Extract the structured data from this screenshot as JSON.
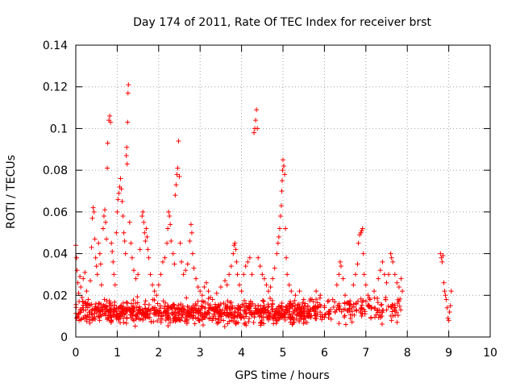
{
  "chart_data": {
    "type": "scatter",
    "title": "Day 174 of 2011, Rate Of TEC Index for receiver brst",
    "xlabel": "GPS time / hours",
    "ylabel": "ROTI / TECUs",
    "xlim": [
      0,
      10
    ],
    "ylim": [
      0,
      0.14
    ],
    "xticks": [
      "0",
      "1",
      "2",
      "3",
      "4",
      "5",
      "6",
      "7",
      "8",
      "9",
      "10"
    ],
    "yticks": [
      "0",
      "0.02",
      "0.04",
      "0.06",
      "0.08",
      "0.1",
      "0.12",
      "0.14"
    ],
    "grid": true,
    "marker": "+",
    "color": "#ff0000",
    "series": [
      {
        "name": "ROTI",
        "points": [
          [
            0.0,
            0.044
          ],
          [
            0.02,
            0.038
          ],
          [
            0.03,
            0.032
          ],
          [
            0.05,
            0.026
          ],
          [
            0.07,
            0.021
          ],
          [
            0.08,
            0.017
          ],
          [
            0.1,
            0.029
          ],
          [
            0.12,
            0.024
          ],
          [
            0.15,
            0.019
          ],
          [
            0.18,
            0.028
          ],
          [
            0.22,
            0.031
          ],
          [
            0.26,
            0.022
          ],
          [
            0.3,
            0.018
          ],
          [
            0.35,
            0.027
          ],
          [
            0.38,
            0.043
          ],
          [
            0.4,
            0.057
          ],
          [
            0.42,
            0.062
          ],
          [
            0.44,
            0.06
          ],
          [
            0.46,
            0.047
          ],
          [
            0.48,
            0.038
          ],
          [
            0.5,
            0.034
          ],
          [
            0.52,
            0.03
          ],
          [
            0.55,
            0.045
          ],
          [
            0.58,
            0.04
          ],
          [
            0.6,
            0.035
          ],
          [
            0.62,
            0.025
          ],
          [
            0.66,
            0.052
          ],
          [
            0.68,
            0.058
          ],
          [
            0.7,
            0.061
          ],
          [
            0.72,
            0.055
          ],
          [
            0.74,
            0.047
          ],
          [
            0.76,
            0.081
          ],
          [
            0.77,
            0.093
          ],
          [
            0.8,
            0.104
          ],
          [
            0.82,
            0.106
          ],
          [
            0.84,
            0.103
          ],
          [
            0.86,
            0.045
          ],
          [
            0.88,
            0.041
          ],
          [
            0.9,
            0.036
          ],
          [
            0.92,
            0.03
          ],
          [
            0.95,
            0.025
          ],
          [
            0.98,
            0.05
          ],
          [
            1.0,
            0.06
          ],
          [
            1.02,
            0.066
          ],
          [
            1.04,
            0.069
          ],
          [
            1.06,
            0.072
          ],
          [
            1.08,
            0.076
          ],
          [
            1.1,
            0.071
          ],
          [
            1.12,
            0.065
          ],
          [
            1.14,
            0.058
          ],
          [
            1.16,
            0.05
          ],
          [
            1.18,
            0.046
          ],
          [
            1.2,
            0.04
          ],
          [
            1.22,
            0.087
          ],
          [
            1.23,
            0.091
          ],
          [
            1.24,
            0.083
          ],
          [
            1.25,
            0.103
          ],
          [
            1.26,
            0.117
          ],
          [
            1.27,
            0.121
          ],
          [
            1.3,
            0.055
          ],
          [
            1.33,
            0.045
          ],
          [
            1.36,
            0.038
          ],
          [
            1.4,
            0.032
          ],
          [
            1.45,
            0.028
          ],
          [
            1.5,
            0.03
          ],
          [
            1.55,
            0.042
          ],
          [
            1.6,
            0.058
          ],
          [
            1.62,
            0.06
          ],
          [
            1.64,
            0.055
          ],
          [
            1.66,
            0.05
          ],
          [
            1.68,
            0.046
          ],
          [
            1.7,
            0.052
          ],
          [
            1.72,
            0.048
          ],
          [
            1.74,
            0.042
          ],
          [
            1.76,
            0.038
          ],
          [
            1.8,
            0.03
          ],
          [
            1.85,
            0.025
          ],
          [
            1.9,
            0.022
          ],
          [
            1.95,
            0.02
          ],
          [
            2.0,
            0.025
          ],
          [
            2.05,
            0.03
          ],
          [
            2.1,
            0.036
          ],
          [
            2.15,
            0.038
          ],
          [
            2.2,
            0.045
          ],
          [
            2.22,
            0.052
          ],
          [
            2.24,
            0.06
          ],
          [
            2.26,
            0.058
          ],
          [
            2.28,
            0.054
          ],
          [
            2.3,
            0.046
          ],
          [
            2.35,
            0.04
          ],
          [
            2.38,
            0.035
          ],
          [
            2.4,
            0.068
          ],
          [
            2.42,
            0.073
          ],
          [
            2.44,
            0.078
          ],
          [
            2.46,
            0.081
          ],
          [
            2.48,
            0.094
          ],
          [
            2.5,
            0.077
          ],
          [
            2.52,
            0.045
          ],
          [
            2.55,
            0.036
          ],
          [
            2.6,
            0.03
          ],
          [
            2.65,
            0.032
          ],
          [
            2.7,
            0.035
          ],
          [
            2.75,
            0.046
          ],
          [
            2.78,
            0.054
          ],
          [
            2.8,
            0.05
          ],
          [
            2.82,
            0.04
          ],
          [
            2.85,
            0.033
          ],
          [
            2.9,
            0.028
          ],
          [
            2.95,
            0.024
          ],
          [
            3.0,
            0.022
          ],
          [
            3.05,
            0.02
          ],
          [
            3.1,
            0.024
          ],
          [
            3.15,
            0.026
          ],
          [
            3.2,
            0.022
          ],
          [
            3.25,
            0.019
          ],
          [
            3.3,
            0.018
          ],
          [
            3.4,
            0.021
          ],
          [
            3.5,
            0.024
          ],
          [
            3.6,
            0.027
          ],
          [
            3.65,
            0.025
          ],
          [
            3.7,
            0.03
          ],
          [
            3.75,
            0.034
          ],
          [
            3.8,
            0.04
          ],
          [
            3.82,
            0.044
          ],
          [
            3.84,
            0.045
          ],
          [
            3.86,
            0.042
          ],
          [
            3.88,
            0.036
          ],
          [
            3.9,
            0.03
          ],
          [
            3.95,
            0.025
          ],
          [
            4.0,
            0.022
          ],
          [
            4.05,
            0.03
          ],
          [
            4.1,
            0.034
          ],
          [
            4.15,
            0.036
          ],
          [
            4.2,
            0.038
          ],
          [
            4.25,
            0.03
          ],
          [
            4.3,
            0.098
          ],
          [
            4.32,
            0.1
          ],
          [
            4.34,
            0.104
          ],
          [
            4.36,
            0.109
          ],
          [
            4.38,
            0.1
          ],
          [
            4.4,
            0.038
          ],
          [
            4.45,
            0.034
          ],
          [
            4.5,
            0.03
          ],
          [
            4.55,
            0.028
          ],
          [
            4.6,
            0.025
          ],
          [
            4.65,
            0.022
          ],
          [
            4.7,
            0.024
          ],
          [
            4.75,
            0.028
          ],
          [
            4.8,
            0.033
          ],
          [
            4.85,
            0.04
          ],
          [
            4.88,
            0.045
          ],
          [
            4.9,
            0.048
          ],
          [
            4.92,
            0.052
          ],
          [
            4.94,
            0.058
          ],
          [
            4.96,
            0.063
          ],
          [
            4.97,
            0.07
          ],
          [
            4.98,
            0.075
          ],
          [
            4.99,
            0.08
          ],
          [
            5.0,
            0.085
          ],
          [
            5.02,
            0.082
          ],
          [
            5.04,
            0.078
          ],
          [
            5.06,
            0.052
          ],
          [
            5.08,
            0.038
          ],
          [
            5.1,
            0.03
          ],
          [
            5.15,
            0.025
          ],
          [
            5.2,
            0.022
          ],
          [
            5.3,
            0.02
          ],
          [
            5.4,
            0.022
          ],
          [
            5.5,
            0.018
          ],
          [
            5.6,
            0.015
          ],
          [
            5.7,
            0.018
          ],
          [
            5.8,
            0.022
          ],
          [
            5.9,
            0.02
          ],
          [
            6.0,
            0.015
          ],
          [
            6.1,
            0.012
          ],
          [
            6.2,
            0.018
          ],
          [
            6.3,
            0.025
          ],
          [
            6.35,
            0.03
          ],
          [
            6.38,
            0.036
          ],
          [
            6.4,
            0.034
          ],
          [
            6.45,
            0.028
          ],
          [
            6.5,
            0.02
          ],
          [
            6.6,
            0.016
          ],
          [
            6.7,
            0.025
          ],
          [
            6.75,
            0.03
          ],
          [
            6.8,
            0.035
          ],
          [
            6.82,
            0.045
          ],
          [
            6.85,
            0.049
          ],
          [
            6.88,
            0.05
          ],
          [
            6.9,
            0.051
          ],
          [
            6.92,
            0.052
          ],
          [
            6.94,
            0.04
          ],
          [
            6.96,
            0.03
          ],
          [
            7.0,
            0.025
          ],
          [
            7.05,
            0.02
          ],
          [
            7.1,
            0.018
          ],
          [
            7.2,
            0.022
          ],
          [
            7.3,
            0.028
          ],
          [
            7.35,
            0.032
          ],
          [
            7.4,
            0.036
          ],
          [
            7.45,
            0.03
          ],
          [
            7.5,
            0.026
          ],
          [
            7.55,
            0.03
          ],
          [
            7.6,
            0.04
          ],
          [
            7.62,
            0.038
          ],
          [
            7.65,
            0.036
          ],
          [
            7.7,
            0.03
          ],
          [
            7.75,
            0.026
          ],
          [
            7.8,
            0.024
          ],
          [
            7.85,
            0.028
          ],
          [
            7.88,
            0.022
          ],
          [
            8.8,
            0.04
          ],
          [
            8.82,
            0.038
          ],
          [
            8.84,
            0.036
          ],
          [
            8.86,
            0.039
          ],
          [
            8.88,
            0.026
          ],
          [
            8.9,
            0.022
          ],
          [
            8.92,
            0.02
          ],
          [
            8.94,
            0.018
          ],
          [
            8.96,
            0.014
          ],
          [
            8.98,
            0.009
          ],
          [
            9.0,
            0.008
          ],
          [
            9.02,
            0.012
          ],
          [
            9.04,
            0.015
          ],
          [
            9.06,
            0.022
          ]
        ],
        "dense_band": {
          "x_range": [
            0.0,
            5.8
          ],
          "y_range": [
            0.004,
            0.02
          ],
          "count": 900
        },
        "secondary_band": {
          "x_range": [
            5.8,
            7.9
          ],
          "y_range": [
            0.004,
            0.022
          ],
          "count": 150
        }
      }
    ]
  }
}
